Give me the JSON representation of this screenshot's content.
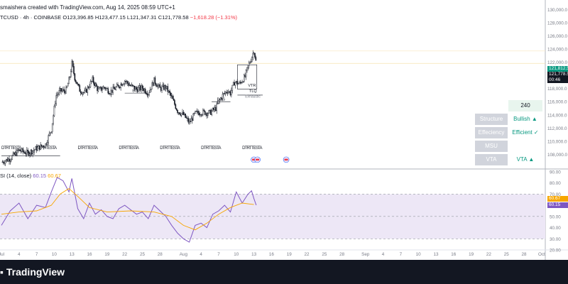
{
  "header": {
    "created": "smaishera created with TradingView.com, Aug 14, 2025 08:59 UTC+1"
  },
  "symbol": {
    "name": "TCUSD · 4h · COINBASE",
    "open": "O123,396.85",
    "high": "H123,477.15",
    "low": "L121,347.31",
    "close": "C121,778.58",
    "change": "−1,618.28 (−1.31%)"
  },
  "rsi": {
    "label": "SI (14, close)",
    "value1": "60.15",
    "value2": "60.67"
  },
  "price_tags": {
    "last_bid": "121,812.5",
    "last": "121,778.5",
    "timer": "00:46",
    "rsi_upper": "60.67",
    "rsi_lower": "60.15"
  },
  "annotations": {
    "bos_labels": [
      "BOS",
      "BOS",
      "BOS"
    ],
    "vtr": "VTR",
    "tlq": "TLQ",
    "exhaust": "Exhaustic",
    "repeating": [
      "DTRTTESTA",
      "DTRTTESTA",
      "DTRTTESTA",
      "DTRTTESTA",
      "DTRTTESTA",
      "DTRTTESTA",
      "DTRTTESTA"
    ]
  },
  "table": {
    "header_value": "240",
    "rows": [
      {
        "label": "Structure",
        "value": "Bullish ▲"
      },
      {
        "label": "Effeciency",
        "value": "Efficient ✓"
      },
      {
        "label": "MSU",
        "value": ""
      },
      {
        "label": "VTA",
        "value": "VTA ▲"
      }
    ]
  },
  "footer": {
    "brand": "TradingView"
  },
  "colors": {
    "up": "#089981",
    "down": "#f23645",
    "rsi": "#7e57c2",
    "rsi_ma": "#f7a600",
    "rsi_band": "#ede7f6",
    "candle": "#131722"
  },
  "chart_data": [
    {
      "type": "candlestick",
      "title": "BTCUSD · 4h · COINBASE",
      "ylim": [
        106000,
        131000
      ],
      "y_ticks": [
        "130,000.0",
        "128,000.0",
        "126,000.0",
        "124,000.0",
        "122,000.0",
        "120,000.0",
        "118,000.0",
        "116,000.0",
        "114,000.0",
        "112,000.0",
        "110,000.0",
        "108,000.0"
      ],
      "y_tick_values": [
        130000,
        128000,
        126000,
        124000,
        122000,
        120000,
        118000,
        116000,
        114000,
        112000,
        110000,
        108000
      ],
      "x_ticks": [
        "Jul",
        "4",
        "7",
        "10",
        "13",
        "16",
        "19",
        "22",
        "25",
        "28",
        "Aug",
        "4",
        "7",
        "10",
        "13",
        "16",
        "19",
        "22",
        "25",
        "28",
        "Sep",
        "4",
        "7",
        "10",
        "13",
        "16",
        "19",
        "22",
        "25",
        "28",
        "Oct"
      ],
      "x_tick_days": [
        0,
        3,
        6,
        9,
        12,
        15,
        18,
        21,
        24,
        27,
        31,
        34,
        37,
        40,
        43,
        46,
        49,
        52,
        55,
        58,
        62,
        65,
        68,
        71,
        74,
        77,
        80,
        83,
        86,
        89,
        92
      ],
      "close_anchors": [
        [
          0,
          106800
        ],
        [
          1.5,
          107400
        ],
        [
          3.0,
          108600
        ],
        [
          4.5,
          108200
        ],
        [
          6.0,
          108900
        ],
        [
          7.5,
          109500
        ],
        [
          8.5,
          111800
        ],
        [
          9.3,
          116900
        ],
        [
          10.0,
          117600
        ],
        [
          11.0,
          117700
        ],
        [
          11.6,
          119500
        ],
        [
          12.0,
          121800
        ],
        [
          12.5,
          119600
        ],
        [
          13.3,
          117800
        ],
        [
          14.2,
          117300
        ],
        [
          15.5,
          119300
        ],
        [
          16.5,
          117700
        ],
        [
          17.5,
          118200
        ],
        [
          18.5,
          117500
        ],
        [
          20.0,
          118400
        ],
        [
          21.0,
          119200
        ],
        [
          22.0,
          118400
        ],
        [
          23.0,
          117900
        ],
        [
          24.0,
          118100
        ],
        [
          25.0,
          117300
        ],
        [
          26.0,
          119200
        ],
        [
          27.0,
          118000
        ],
        [
          28.0,
          118200
        ],
        [
          29.0,
          116600
        ],
        [
          30.0,
          114600
        ],
        [
          31.0,
          114000
        ],
        [
          32.0,
          112800
        ],
        [
          33.0,
          114200
        ],
        [
          34.0,
          114400
        ],
        [
          35.5,
          114300
        ],
        [
          36.5,
          115000
        ],
        [
          37.5,
          116800
        ],
        [
          38.5,
          117700
        ],
        [
          39.0,
          117300
        ],
        [
          39.7,
          119000
        ],
        [
          40.5,
          118700
        ],
        [
          41.5,
          119800
        ],
        [
          42.0,
          121300
        ],
        [
          42.6,
          122700
        ],
        [
          43.0,
          123800
        ],
        [
          43.4,
          121800
        ]
      ]
    },
    {
      "type": "line",
      "title": "RSI (14, close)",
      "ylim": [
        20,
        90
      ],
      "y_ticks": [
        "90.00",
        "80.00",
        "70.00",
        "60.00",
        "50.00",
        "40.00",
        "30.00",
        "20.00"
      ],
      "y_tick_values": [
        90,
        80,
        70,
        60,
        50,
        40,
        30,
        20
      ],
      "band": [
        30,
        70
      ],
      "series": [
        {
          "name": "RSI",
          "points": [
            [
              0,
              42
            ],
            [
              1.5,
              55
            ],
            [
              3,
              62
            ],
            [
              4.5,
              48
            ],
            [
              6,
              60
            ],
            [
              7.5,
              58
            ],
            [
              8.5,
              72
            ],
            [
              9.5,
              85
            ],
            [
              10.5,
              82
            ],
            [
              11.5,
              72
            ],
            [
              12,
              84
            ],
            [
              13,
              57
            ],
            [
              14,
              48
            ],
            [
              15,
              62
            ],
            [
              16,
              52
            ],
            [
              17,
              56
            ],
            [
              18,
              50
            ],
            [
              19,
              48
            ],
            [
              20,
              57
            ],
            [
              21,
              60
            ],
            [
              22,
              56
            ],
            [
              23,
              52
            ],
            [
              24,
              54
            ],
            [
              25,
              48
            ],
            [
              26,
              60
            ],
            [
              27,
              55
            ],
            [
              28,
              50
            ],
            [
              29,
              42
            ],
            [
              30,
              35
            ],
            [
              31,
              30
            ],
            [
              32,
              27
            ],
            [
              33,
              42
            ],
            [
              34,
              44
            ],
            [
              35,
              40
            ],
            [
              36,
              52
            ],
            [
              37,
              55
            ],
            [
              38,
              60
            ],
            [
              39,
              54
            ],
            [
              40,
              72
            ],
            [
              41,
              62
            ],
            [
              42,
              70
            ],
            [
              42.6,
              73
            ],
            [
              43,
              66
            ],
            [
              43.4,
              60.15
            ]
          ]
        },
        {
          "name": "RSI-based MA",
          "points": [
            [
              0,
              52
            ],
            [
              3,
              54
            ],
            [
              6,
              55
            ],
            [
              8.5,
              60
            ],
            [
              10,
              70
            ],
            [
              11.5,
              75
            ],
            [
              13,
              68
            ],
            [
              15,
              58
            ],
            [
              18,
              54
            ],
            [
              22,
              55
            ],
            [
              26,
              54
            ],
            [
              29,
              50
            ],
            [
              31,
              42
            ],
            [
              33,
              38
            ],
            [
              35,
              44
            ],
            [
              37,
              52
            ],
            [
              39,
              58
            ],
            [
              41,
              62
            ],
            [
              43,
              60.67
            ]
          ]
        }
      ]
    }
  ]
}
